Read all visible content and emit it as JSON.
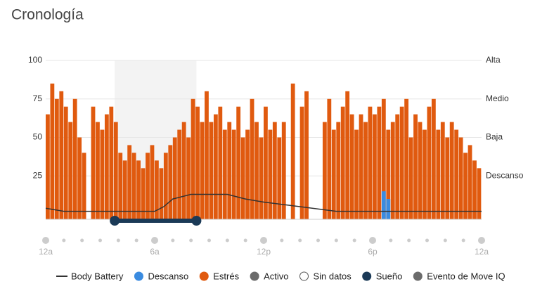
{
  "chart_data": {
    "type": "bar",
    "title": "Cronología",
    "ylim": [
      0,
      100
    ],
    "yticks": [
      25,
      50,
      75,
      100
    ],
    "right_labels": [
      "Alta",
      "Medio",
      "Baja",
      "Descanso"
    ],
    "xlim": [
      0,
      24
    ],
    "xticks": [
      {
        "value": 0,
        "label": "12a"
      },
      {
        "value": 6,
        "label": "6a"
      },
      {
        "value": 12,
        "label": "12p"
      },
      {
        "value": 18,
        "label": "6p"
      },
      {
        "value": 24,
        "label": "12a"
      }
    ],
    "series": [
      {
        "name": "Estrés",
        "color": "#e05a0f",
        "values": [
          65,
          85,
          75,
          80,
          70,
          60,
          75,
          50,
          40,
          null,
          70,
          60,
          55,
          65,
          70,
          60,
          40,
          35,
          45,
          40,
          35,
          30,
          40,
          45,
          35,
          30,
          40,
          45,
          50,
          55,
          60,
          50,
          75,
          70,
          60,
          80,
          60,
          65,
          70,
          55,
          60,
          55,
          70,
          50,
          55,
          75,
          60,
          50,
          70,
          55,
          60,
          50,
          60,
          null,
          85,
          null,
          70,
          80,
          null,
          null,
          null,
          60,
          75,
          55,
          60,
          70,
          80,
          65,
          55,
          65,
          60,
          70,
          65,
          70,
          75,
          55,
          60,
          65,
          70,
          75,
          50,
          65,
          60,
          55,
          70,
          75,
          55,
          60,
          50,
          60,
          55,
          50,
          40,
          45,
          35,
          30
        ]
      },
      {
        "name": "Descanso",
        "color": "#3a8be0",
        "values": [
          null,
          null,
          null,
          null,
          null,
          null,
          null,
          null,
          null,
          null,
          null,
          null,
          null,
          null,
          null,
          null,
          null,
          null,
          null,
          null,
          null,
          null,
          null,
          null,
          null,
          null,
          null,
          null,
          null,
          null,
          null,
          null,
          null,
          null,
          null,
          null,
          null,
          null,
          null,
          null,
          null,
          null,
          null,
          null,
          null,
          null,
          null,
          null,
          null,
          null,
          null,
          null,
          null,
          null,
          null,
          null,
          null,
          null,
          null,
          null,
          null,
          null,
          null,
          null,
          null,
          null,
          null,
          null,
          null,
          null,
          null,
          null,
          null,
          null,
          15,
          10,
          null,
          null,
          null,
          null,
          null,
          null,
          null,
          null,
          null,
          null,
          null,
          null,
          null,
          null,
          null,
          null,
          null,
          null,
          null,
          null
        ]
      }
    ],
    "body_battery": {
      "name": "Body Battery",
      "color": "#333333",
      "x": [
        0,
        1,
        4,
        6,
        6.5,
        7,
        8,
        10,
        11,
        12,
        14,
        16,
        24
      ],
      "values": [
        4,
        2,
        2,
        2,
        5,
        10,
        13,
        13,
        10,
        8,
        5,
        2,
        2
      ]
    },
    "sleep": {
      "start": 3.8,
      "end": 8.3,
      "color": "#1b3a57"
    },
    "legend": [
      {
        "name": "Body Battery",
        "color": "#333333"
      },
      {
        "name": "Descanso",
        "color": "#3a8be0"
      },
      {
        "name": "Estrés",
        "color": "#e05a0f"
      },
      {
        "name": "Activo",
        "color": "#6b6b6b"
      },
      {
        "name": "Sin datos",
        "color": "#ffffff"
      },
      {
        "name": "Sueño",
        "color": "#1b3a57"
      },
      {
        "name": "Evento de Move IQ",
        "color": "#6b6b6b"
      }
    ]
  }
}
